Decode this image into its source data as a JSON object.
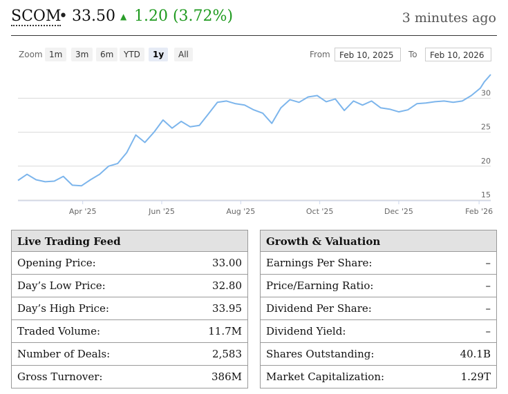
{
  "header": {
    "symbol": "SCOM",
    "separator": "•",
    "price": "33.50",
    "change_arrow": "▲",
    "change": "1.20 (3.72%)",
    "updated": "3 minutes ago",
    "up_color": "#1f9a1f"
  },
  "controls": {
    "zoom_label": "Zoom",
    "zoom_options": [
      "1m",
      "3m",
      "6m",
      "YTD",
      "1y",
      "All"
    ],
    "active_zoom": "1y",
    "from_label": "From",
    "from_value": "Feb 10, 2025",
    "to_label": "To",
    "to_value": "Feb 10, 2026"
  },
  "chart_data": {
    "type": "line",
    "series": [
      {
        "x": [
          "2025-02-10",
          "2025-02-17",
          "2025-02-24",
          "2025-03-03",
          "2025-03-10",
          "2025-03-17",
          "2025-03-24",
          "2025-03-31",
          "2025-04-07",
          "2025-04-14",
          "2025-04-21",
          "2025-04-28",
          "2025-05-05",
          "2025-05-12",
          "2025-05-19",
          "2025-05-26",
          "2025-06-02",
          "2025-06-09",
          "2025-06-16",
          "2025-06-23",
          "2025-06-30",
          "2025-07-07",
          "2025-07-14",
          "2025-07-21",
          "2025-07-28",
          "2025-08-04",
          "2025-08-11",
          "2025-08-18",
          "2025-08-25",
          "2025-09-01",
          "2025-09-08",
          "2025-09-15",
          "2025-09-22",
          "2025-09-29",
          "2025-10-06",
          "2025-10-13",
          "2025-10-20",
          "2025-10-27",
          "2025-11-03",
          "2025-11-10",
          "2025-11-17",
          "2025-11-24",
          "2025-12-01",
          "2025-12-08",
          "2025-12-15",
          "2025-12-22",
          "2025-12-29",
          "2026-01-05",
          "2026-01-12",
          "2026-01-19",
          "2026-01-26",
          "2026-02-02",
          "2026-02-05",
          "2026-02-10"
        ],
        "y": [
          17.9,
          18.8,
          18.0,
          17.7,
          17.8,
          18.5,
          17.2,
          17.1,
          18.0,
          18.8,
          20.0,
          20.4,
          22.0,
          24.6,
          23.5,
          25.0,
          26.8,
          25.6,
          26.6,
          25.8,
          26.0,
          27.7,
          29.4,
          29.6,
          29.2,
          29.0,
          28.3,
          27.8,
          26.3,
          28.6,
          29.8,
          29.4,
          30.2,
          30.4,
          29.5,
          29.9,
          28.2,
          29.6,
          29.0,
          29.6,
          28.6,
          28.4,
          28.0,
          28.3,
          29.2,
          29.3,
          29.5,
          29.6,
          29.4,
          29.6,
          30.4,
          31.5,
          32.4,
          33.5
        ]
      }
    ],
    "x_ticks": [
      "Apr '25",
      "Jun '25",
      "Aug '25",
      "Oct '25",
      "Dec '25",
      "Feb '26"
    ],
    "y_ticks": [
      15,
      20,
      25,
      30
    ],
    "ylim": [
      15,
      33.5
    ],
    "grid": true,
    "line_color": "#7cb5ec"
  },
  "left_panel": {
    "title": "Live Trading Feed",
    "rows": [
      {
        "label": "Opening Price:",
        "value": "33.00"
      },
      {
        "label": "Day’s Low Price:",
        "value": "32.80"
      },
      {
        "label": "Day’s High Price:",
        "value": "33.95"
      },
      {
        "label": "Traded Volume:",
        "value": "11.7M"
      },
      {
        "label": "Number of Deals:",
        "value": "2,583"
      },
      {
        "label": "Gross Turnover:",
        "value": "386M"
      }
    ]
  },
  "right_panel": {
    "title": "Growth & Valuation",
    "rows": [
      {
        "label": "Earnings Per Share:",
        "value": "–"
      },
      {
        "label": "Price/Earning Ratio:",
        "value": "–"
      },
      {
        "label": "Dividend Per Share:",
        "value": "–"
      },
      {
        "label": "Dividend Yield:",
        "value": "–"
      },
      {
        "label": "Shares Outstanding:",
        "value": "40.1B"
      },
      {
        "label": "Market Capitalization:",
        "value": "1.29T"
      }
    ]
  }
}
